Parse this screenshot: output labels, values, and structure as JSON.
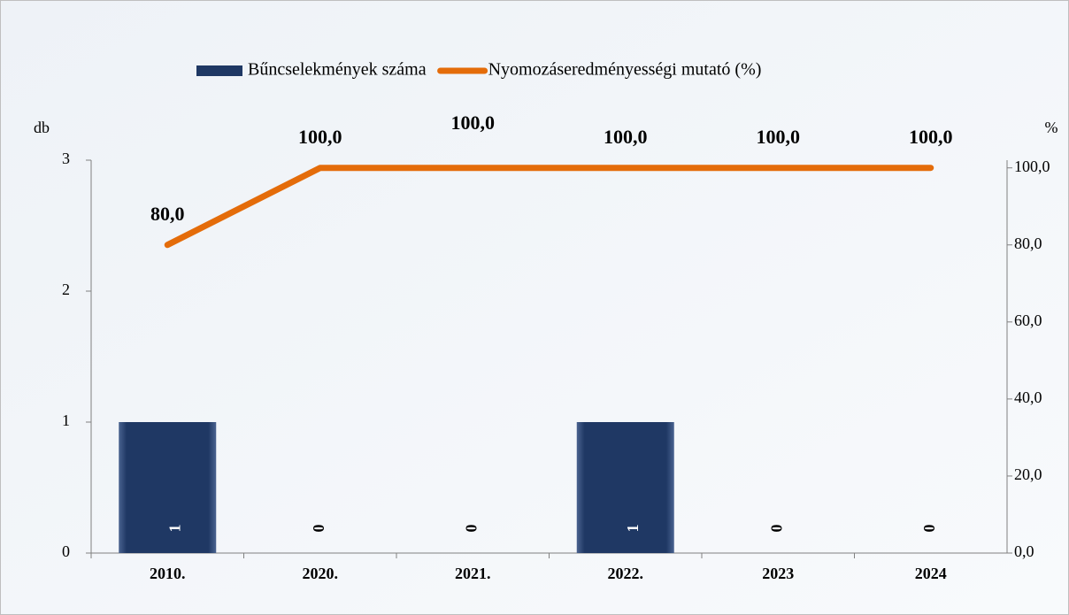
{
  "chart_data": {
    "type": "bar_line",
    "categories": [
      "2010.",
      "2020.",
      "2021.",
      "2022.",
      "2023",
      "2024"
    ],
    "series": [
      {
        "name": "Bűncselekmények száma",
        "type": "bar",
        "color": "#1f3864",
        "values": [
          1,
          0,
          0,
          1,
          0,
          0
        ]
      },
      {
        "name": "Nyomozáseredményességi mutató (%)",
        "type": "line",
        "axis": "y2",
        "color": "#e46c0a",
        "values": [
          80,
          100,
          100,
          100,
          100,
          100
        ],
        "value_labels": [
          "80,0",
          "100,0",
          "100,0",
          "100,0",
          "100,0",
          "100,0"
        ]
      }
    ],
    "y_label": "db",
    "y2_label": "%",
    "ylim": [
      0,
      3
    ],
    "yticks": [
      0,
      1,
      2,
      3
    ],
    "y2lim": [
      0,
      102
    ],
    "y2ticks": [
      {
        "value": 0,
        "label": "0,0"
      },
      {
        "value": 20,
        "label": "20,0"
      },
      {
        "value": 40,
        "label": "40,0"
      },
      {
        "value": 60,
        "label": "60,0"
      },
      {
        "value": 80,
        "label": "80,0"
      },
      {
        "value": 100,
        "label": "100,0"
      }
    ],
    "legend": "top"
  }
}
